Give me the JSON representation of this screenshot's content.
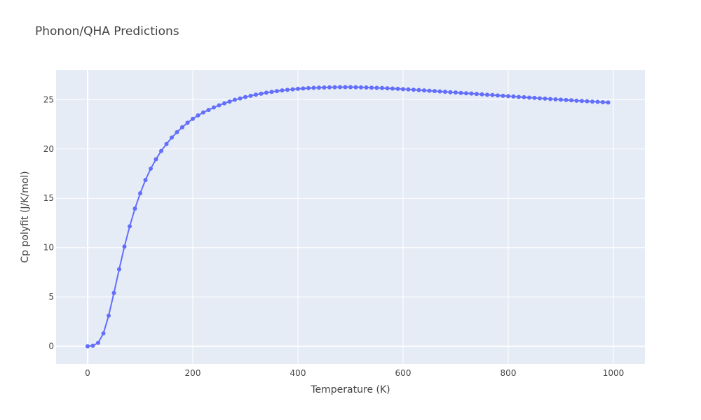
{
  "chart_data": {
    "type": "line",
    "title": "Phonon/QHA Predictions",
    "xlabel": "Temperature (K)",
    "ylabel": "Cp polyfit (J/K/mol)",
    "xlim": [
      -60,
      1060
    ],
    "ylim": [
      -1.8,
      28
    ],
    "xticks": [
      0,
      200,
      400,
      600,
      800,
      1000
    ],
    "yticks": [
      0,
      5,
      10,
      15,
      20,
      25
    ],
    "grid": true,
    "markers": true,
    "colors": {
      "series": "#636efa",
      "plot_bg": "#e5ecf6",
      "grid": "#ffffff"
    },
    "series": [
      {
        "x": [
          0,
          10,
          20,
          30,
          40,
          50,
          60,
          70,
          80,
          90,
          100,
          110,
          120,
          130,
          140,
          150,
          160,
          170,
          180,
          190,
          200,
          210,
          220,
          230,
          240,
          250,
          260,
          270,
          280,
          290,
          300,
          310,
          320,
          330,
          340,
          350,
          360,
          370,
          380,
          390,
          400,
          410,
          420,
          430,
          440,
          450,
          460,
          470,
          480,
          490,
          500,
          510,
          520,
          530,
          540,
          550,
          560,
          570,
          580,
          590,
          600,
          610,
          620,
          630,
          640,
          650,
          660,
          670,
          680,
          690,
          700,
          710,
          720,
          730,
          740,
          750,
          760,
          770,
          780,
          790,
          800,
          810,
          820,
          830,
          840,
          850,
          860,
          870,
          880,
          890,
          900,
          910,
          920,
          930,
          940,
          950,
          960,
          970,
          980,
          990
        ],
        "y": [
          0.0,
          0.05,
          0.35,
          1.3,
          3.1,
          5.4,
          7.8,
          10.1,
          12.15,
          13.95,
          15.5,
          16.85,
          18.0,
          18.95,
          19.8,
          20.5,
          21.15,
          21.7,
          22.2,
          22.65,
          23.05,
          23.4,
          23.7,
          23.95,
          24.2,
          24.42,
          24.62,
          24.8,
          24.98,
          25.12,
          25.26,
          25.38,
          25.5,
          25.6,
          25.7,
          25.78,
          25.86,
          25.93,
          25.99,
          26.04,
          26.09,
          26.13,
          26.16,
          26.19,
          26.21,
          26.23,
          26.24,
          26.25,
          26.26,
          26.26,
          26.26,
          26.25,
          26.24,
          26.23,
          26.21,
          26.19,
          26.17,
          26.15,
          26.12,
          26.09,
          26.06,
          26.03,
          26.0,
          25.97,
          25.93,
          25.9,
          25.86,
          25.83,
          25.79,
          25.75,
          25.72,
          25.68,
          25.64,
          25.61,
          25.57,
          25.53,
          25.49,
          25.46,
          25.42,
          25.38,
          25.35,
          25.31,
          25.27,
          25.24,
          25.2,
          25.17,
          25.13,
          25.1,
          25.06,
          25.03,
          24.99,
          24.96,
          24.93,
          24.89,
          24.86,
          24.83,
          24.8,
          24.77,
          24.74,
          24.71
        ]
      }
    ]
  }
}
